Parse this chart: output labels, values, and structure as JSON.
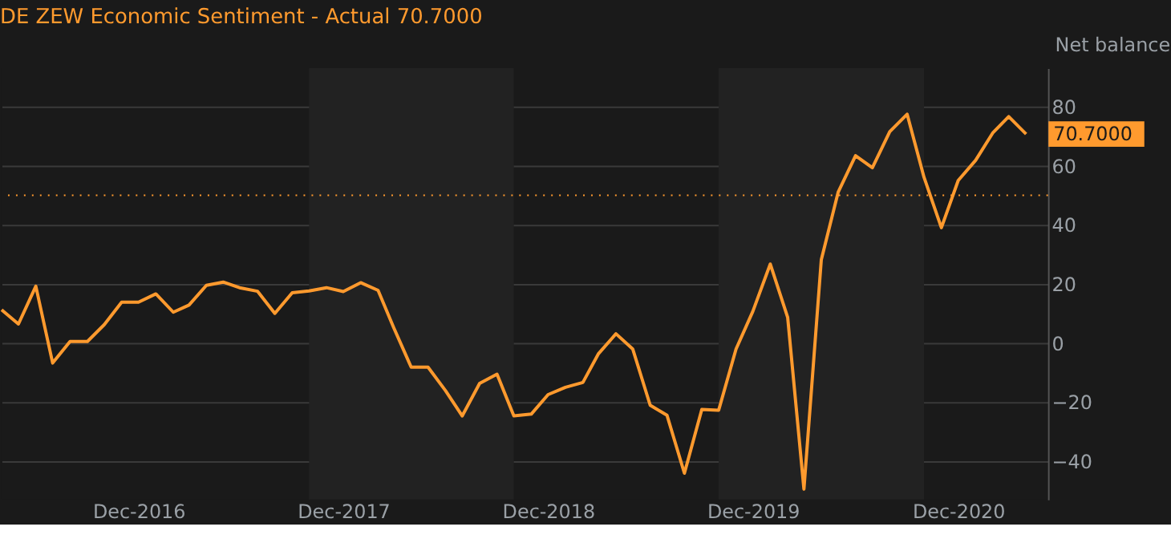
{
  "chart_data": {
    "type": "line",
    "title": "DE ZEW Economic Sentiment - Actual 70.7000",
    "ylabel": "Net balance",
    "x": [
      "2016-04",
      "2016-05",
      "2016-06",
      "2016-07",
      "2016-08",
      "2016-09",
      "2016-10",
      "2016-11",
      "2016-12",
      "2017-01",
      "2017-02",
      "2017-03",
      "2017-04",
      "2017-05",
      "2017-06",
      "2017-07",
      "2017-08",
      "2017-09",
      "2017-10",
      "2017-11",
      "2017-12",
      "2018-01",
      "2018-02",
      "2018-03",
      "2018-04",
      "2018-05",
      "2018-06",
      "2018-07",
      "2018-08",
      "2018-09",
      "2018-10",
      "2018-11",
      "2018-12",
      "2019-01",
      "2019-02",
      "2019-03",
      "2019-04",
      "2019-05",
      "2019-06",
      "2019-07",
      "2019-08",
      "2019-09",
      "2019-10",
      "2019-11",
      "2019-12",
      "2020-01",
      "2020-02",
      "2020-03",
      "2020-04",
      "2020-05",
      "2020-06",
      "2020-07",
      "2020-08",
      "2020-09",
      "2020-10",
      "2020-11",
      "2020-12",
      "2021-01",
      "2021-02",
      "2021-03",
      "2021-04"
    ],
    "series": [
      {
        "color": "#ff9a2e",
        "values": [
          11.2,
          6.4,
          19.2,
          -6.8,
          0.5,
          0.5,
          6.2,
          13.8,
          13.8,
          16.6,
          10.4,
          12.8,
          19.5,
          20.6,
          18.6,
          17.5,
          10.0,
          17.0,
          17.6,
          18.7,
          17.4,
          20.4,
          17.8,
          5.1,
          -8.2,
          -8.2,
          -16.1,
          -24.7,
          -13.7,
          -10.6,
          -24.7,
          -24.1,
          -17.5,
          -15.0,
          -13.4,
          -3.6,
          3.1,
          -2.1,
          -21.1,
          -24.5,
          -44.1,
          -22.5,
          -22.8,
          -2.1,
          10.7,
          26.7,
          8.7,
          -49.5,
          28.2,
          51.0,
          63.4,
          59.3,
          71.5,
          77.4,
          56.1,
          39.0,
          55.0,
          61.8,
          71.2,
          76.6,
          70.7
        ]
      }
    ],
    "xlim": [
      "2016-04",
      "2021-05-10"
    ],
    "xticks": [
      {
        "value": "2016-12",
        "label": "Dec-2016"
      },
      {
        "value": "2017-12",
        "label": "Dec-2017"
      },
      {
        "value": "2018-12",
        "label": "Dec-2018"
      },
      {
        "value": "2019-12",
        "label": "Dec-2019"
      },
      {
        "value": "2020-12",
        "label": "Dec-2020"
      }
    ],
    "ylim": [
      -53,
      93
    ],
    "yticks": [
      -40,
      -20,
      0,
      20,
      40,
      60,
      80
    ],
    "grid": "y",
    "marker": "none",
    "line_style": "solid",
    "ref_lines": [
      {
        "axis": "y",
        "value": 50,
        "color": "#ff9a2e",
        "line_style": "dotted"
      }
    ],
    "bands": [
      {
        "axis": "x",
        "from": "2017-10",
        "to": "2018-10",
        "color": "#222222"
      },
      {
        "axis": "x",
        "from": "2019-10",
        "to": "2020-10",
        "color": "#222222"
      }
    ],
    "annotations": [
      {
        "text": "70.7000",
        "x": "2021-04",
        "y": 70.7
      }
    ]
  }
}
